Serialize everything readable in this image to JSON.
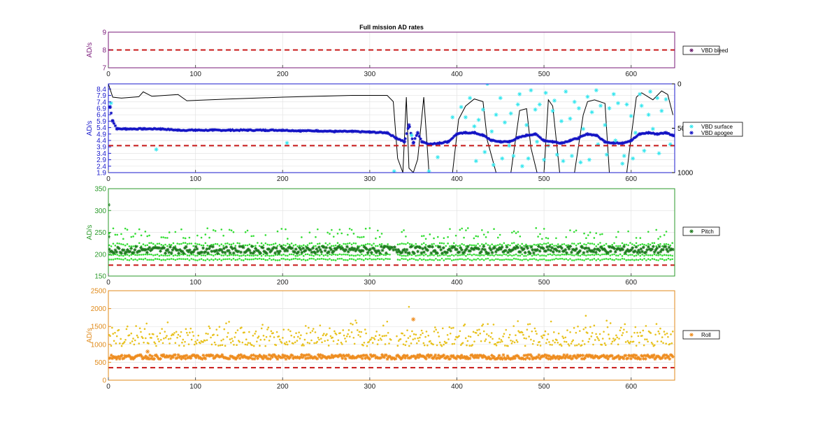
{
  "figure": {
    "title": "Full mission AD rates"
  },
  "chart_data": [
    {
      "type": "scatter",
      "id": "vbd-bleed",
      "title": "Full mission AD rates",
      "ylabel": "AD/s",
      "xlabel": "",
      "xlim": [
        0,
        650
      ],
      "ylim": [
        7,
        9
      ],
      "yticks": [
        7,
        8,
        9
      ],
      "xticks": [
        0,
        100,
        200,
        300,
        400,
        500,
        600
      ],
      "grid": true,
      "axis_color": "#7a1a7a",
      "legend_position": "right",
      "threshold": 8,
      "series": [
        {
          "name": "VBD bleed",
          "marker": "*",
          "color": "#6a1a6a",
          "values": []
        }
      ]
    },
    {
      "type": "scatter",
      "id": "vbd-rates",
      "ylabel": "AD/s",
      "xlim": [
        0,
        650
      ],
      "ylim": [
        1.9,
        8.8
      ],
      "yticks": [
        1.9,
        2.4,
        2.9,
        3.4,
        3.9,
        4.4,
        4.9,
        5.4,
        5.9,
        6.4,
        6.9,
        7.4,
        7.9,
        8.4
      ],
      "xticks": [
        0,
        100,
        200,
        300,
        400,
        500,
        600
      ],
      "y2lim": [
        0,
        1000
      ],
      "y2ticks": [
        0,
        500,
        1000
      ],
      "grid": true,
      "axis_color": "#1a1acc",
      "legend_position": "right",
      "threshold": 4.0,
      "depth_profile": {
        "color": "#000000",
        "x": [
          0,
          5,
          15,
          35,
          40,
          50,
          80,
          90,
          140,
          200,
          280,
          320,
          327,
          332,
          338,
          342,
          345,
          350,
          355,
          362,
          368,
          375,
          385,
          395,
          402,
          410,
          420,
          430,
          435,
          445,
          455,
          462,
          472,
          480,
          485,
          492,
          500,
          505,
          510,
          518,
          528,
          535,
          545,
          550,
          558,
          570,
          575,
          585,
          595,
          600,
          606,
          612,
          625,
          635,
          642,
          648
        ],
        "y": [
          0,
          150,
          160,
          145,
          90,
          140,
          120,
          190,
          170,
          150,
          130,
          130,
          200,
          840,
          1000,
          150,
          950,
          1000,
          850,
          150,
          1000,
          1000,
          1000,
          1000,
          400,
          250,
          170,
          200,
          640,
          1000,
          1000,
          1000,
          300,
          280,
          720,
          1000,
          1000,
          180,
          250,
          1000,
          1000,
          1000,
          350,
          200,
          180,
          220,
          1000,
          1000,
          1000,
          600,
          150,
          100,
          180,
          80,
          120,
          350
        ]
      },
      "series": [
        {
          "name": "VBD surface",
          "marker": "*",
          "color": "#33e6ee",
          "x": [
            3,
            55,
            205,
            328,
            348,
            368,
            378,
            395,
            405,
            410,
            415,
            420,
            422,
            425,
            430,
            432,
            435,
            440,
            442,
            445,
            450,
            452,
            455,
            460,
            462,
            465,
            470,
            472,
            475,
            480,
            482,
            485,
            490,
            492,
            495,
            500,
            502,
            505,
            510,
            512,
            515,
            520,
            522,
            525,
            530,
            532,
            535,
            540,
            542,
            545,
            550,
            552,
            555,
            560,
            562,
            565,
            570,
            572,
            575,
            580,
            582,
            585,
            590,
            592,
            595,
            600,
            602,
            605,
            610,
            612,
            615,
            620,
            622,
            625,
            630,
            632,
            635,
            640,
            645
          ],
          "y": [
            7.3,
            3.7,
            4.2,
            2.0,
            4.8,
            2.0,
            3.1,
            6.2,
            7.0,
            6.2,
            7.7,
            5.5,
            2.8,
            6.0,
            6.8,
            3.5,
            8.8,
            5.1,
            2.5,
            6.4,
            7.7,
            3.0,
            5.8,
            4.0,
            6.5,
            3.2,
            7.2,
            8.0,
            2.4,
            5.6,
            3.0,
            8.3,
            6.8,
            4.3,
            7.2,
            2.9,
            8.1,
            4.0,
            6.7,
            7.5,
            3.3,
            5.9,
            2.8,
            8.2,
            6.1,
            3.2,
            7.4,
            6.9,
            2.7,
            5.3,
            7.8,
            2.9,
            6.6,
            8.3,
            4.1,
            7.1,
            5.6,
            3.3,
            6.9,
            8.0,
            4.4,
            7.3,
            2.6,
            3.2,
            7.2,
            6.3,
            3.0,
            5.0,
            8.0,
            7.1,
            3.6,
            6.4,
            8.2,
            5.3,
            7.7,
            3.4,
            6.7,
            7.6,
            4.1
          ]
        },
        {
          "name": "VBD apogee",
          "marker": "*",
          "color": "#1212c4",
          "x": [
            2,
            5,
            10,
            20,
            40,
            60,
            80,
            100,
            120,
            140,
            160,
            180,
            200,
            220,
            240,
            260,
            280,
            300,
            320,
            330,
            340,
            345,
            350,
            355,
            360,
            370,
            380,
            390,
            400,
            410,
            420,
            430,
            440,
            450,
            460,
            470,
            480,
            490,
            500,
            510,
            520,
            530,
            540,
            550,
            560,
            570,
            580,
            590,
            600,
            610,
            620,
            630,
            640,
            648
          ],
          "y": [
            7.0,
            5.9,
            5.3,
            5.3,
            5.3,
            5.3,
            5.2,
            5.2,
            5.2,
            5.2,
            5.2,
            5.2,
            5.2,
            5.15,
            5.15,
            5.1,
            5.1,
            5.05,
            5.0,
            4.6,
            4.3,
            5.6,
            4.2,
            5.0,
            4.3,
            4.1,
            4.2,
            4.3,
            4.9,
            5.0,
            5.0,
            4.8,
            4.4,
            4.3,
            4.3,
            4.6,
            4.8,
            4.9,
            4.4,
            4.3,
            4.2,
            4.4,
            4.6,
            4.9,
            4.8,
            4.3,
            4.2,
            4.2,
            4.4,
            4.9,
            5.0,
            4.9,
            5.0,
            4.8
          ]
        }
      ]
    },
    {
      "type": "scatter",
      "id": "pitch",
      "ylabel": "AD/s",
      "xlim": [
        0,
        650
      ],
      "ylim": [
        150,
        350
      ],
      "yticks": [
        150,
        200,
        250,
        300,
        350
      ],
      "xticks": [
        0,
        100,
        200,
        300,
        400,
        500,
        600
      ],
      "grid": true,
      "axis_color": "#2a9a2a",
      "legend_position": "right",
      "threshold": 175,
      "series": [
        {
          "name": "Pitch",
          "marker": "*",
          "color": "#1f7a1f",
          "base": 210,
          "spread": 8,
          "outliers": [
            [
              0,
              313
            ],
            [
              0,
              240
            ]
          ]
        },
        {
          "name": "",
          "marker": ".",
          "color": "#33dd33",
          "bands": [
            188,
            198,
            222,
            235
          ]
        }
      ]
    },
    {
      "type": "scatter",
      "id": "roll",
      "ylabel": "AD/s",
      "xlim": [
        0,
        650
      ],
      "ylim": [
        0,
        2500
      ],
      "yticks": [
        0,
        500,
        1000,
        1500,
        2000,
        2500
      ],
      "xticks": [
        0,
        100,
        200,
        300,
        400,
        500,
        600
      ],
      "grid": true,
      "axis_color": "#e08a1a",
      "legend_position": "right",
      "threshold": 350,
      "series": [
        {
          "name": "Roll",
          "marker": "*",
          "color": "#ee8c1e",
          "base": 650,
          "spread": 60,
          "outliers": [
            [
              350,
              1700
            ],
            [
              45,
              800
            ]
          ]
        },
        {
          "name": "",
          "marker": ".",
          "color": "#e8c21e",
          "low": 950,
          "high": 1700,
          "peak": [
            [
              345,
              2050
            ],
            [
              548,
              1800
            ],
            [
              470,
              1650
            ]
          ]
        }
      ]
    }
  ]
}
